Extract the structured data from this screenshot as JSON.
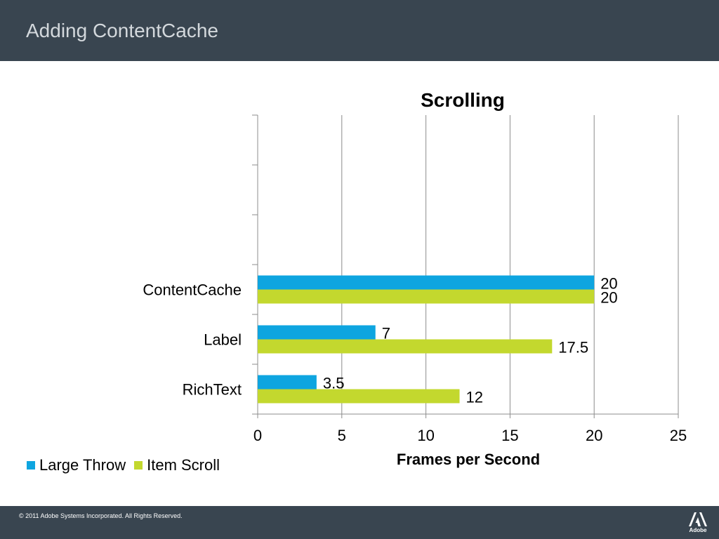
{
  "slide": {
    "title": "Adding ContentCache",
    "footer_text": "© 2011 Adobe Systems Incorporated.  All Rights Reserved.",
    "logo_label": "Adobe"
  },
  "colors": {
    "header_bg": "#394550",
    "series_1": "#0ea5e0",
    "series_2": "#c3d82e",
    "grid": "#8c8c8c"
  },
  "chart_data": {
    "type": "bar",
    "orientation": "horizontal",
    "title": "Scrolling",
    "xlabel": "Frames per Second",
    "ylabel": "",
    "xlim": [
      0,
      25
    ],
    "xticks": [
      0,
      5,
      10,
      15,
      20,
      25
    ],
    "categories": [
      "ContentCache",
      "Label",
      "RichText"
    ],
    "series": [
      {
        "name": "Large Throw",
        "values": [
          20,
          7,
          3.5
        ]
      },
      {
        "name": "Item Scroll",
        "values": [
          20,
          17.5,
          12
        ]
      }
    ],
    "grid": true,
    "legend_position": "bottom-left"
  }
}
